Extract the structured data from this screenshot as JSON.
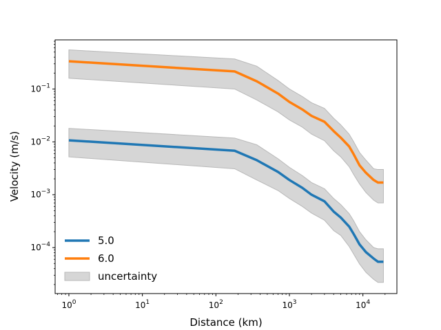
{
  "chart_data": {
    "type": "line",
    "title": "",
    "xlabel": "Distance (km)",
    "ylabel": "Velocity (m/s)",
    "xscale": "log",
    "yscale": "log",
    "xlim": [
      0.65,
      29000
    ],
    "ylim": [
      1.35e-05,
      0.85
    ],
    "grid": false,
    "legend_position": "lower-left",
    "x_ticks": [
      {
        "value": 1,
        "base": "10",
        "exp": "0"
      },
      {
        "value": 10,
        "base": "10",
        "exp": "1"
      },
      {
        "value": 100,
        "base": "10",
        "exp": "2"
      },
      {
        "value": 1000,
        "base": "10",
        "exp": "3"
      },
      {
        "value": 10000,
        "base": "10",
        "exp": "4"
      }
    ],
    "y_ticks": [
      {
        "value": 0.0001,
        "base": "10",
        "exp": "−4"
      },
      {
        "value": 0.001,
        "base": "10",
        "exp": "−3"
      },
      {
        "value": 0.01,
        "base": "10",
        "exp": "−2"
      },
      {
        "value": 0.1,
        "base": "10",
        "exp": "−1"
      }
    ],
    "series": [
      {
        "name": "5.0",
        "color": "#1f77b4",
        "points": [
          [
            1,
            0.0107
          ],
          [
            180,
            0.0068
          ],
          [
            360,
            0.0045
          ],
          [
            700,
            0.0027
          ],
          [
            1000,
            0.0019
          ],
          [
            1500,
            0.00135
          ],
          [
            2000,
            0.001
          ],
          [
            3000,
            0.00075
          ],
          [
            4000,
            0.00048
          ],
          [
            5000,
            0.00037
          ],
          [
            6500,
            0.00025
          ],
          [
            7500,
            0.00018
          ],
          [
            9000,
            0.000115
          ],
          [
            11000,
            8.2e-05
          ],
          [
            14000,
            6.2e-05
          ],
          [
            16000,
            5.4e-05
          ],
          [
            19000,
            5.4e-05
          ]
        ],
        "band_upper": [
          [
            1,
            0.018
          ],
          [
            180,
            0.0118
          ],
          [
            360,
            0.0088
          ],
          [
            700,
            0.0048
          ],
          [
            1000,
            0.0033
          ],
          [
            1500,
            0.0023
          ],
          [
            2000,
            0.0017
          ],
          [
            3000,
            0.0013
          ],
          [
            4000,
            0.00085
          ],
          [
            5000,
            0.00065
          ],
          [
            6500,
            0.00044
          ],
          [
            7500,
            0.00032
          ],
          [
            9000,
            0.0002
          ],
          [
            11000,
            0.00014
          ],
          [
            14000,
            0.0001
          ],
          [
            16000,
            9.5e-05
          ],
          [
            19000,
            9.5e-05
          ]
        ],
        "band_lower": [
          [
            1,
            0.0052
          ],
          [
            180,
            0.0031
          ],
          [
            360,
            0.0019
          ],
          [
            700,
            0.0012
          ],
          [
            1000,
            0.00085
          ],
          [
            1500,
            0.0006
          ],
          [
            2000,
            0.00045
          ],
          [
            3000,
            0.00033
          ],
          [
            4000,
            0.00021
          ],
          [
            5000,
            0.00017
          ],
          [
            6500,
            0.000105
          ],
          [
            7500,
            7.5e-05
          ],
          [
            9000,
            4.9e-05
          ],
          [
            11000,
            3.4e-05
          ],
          [
            14000,
            2.5e-05
          ],
          [
            16000,
            2.2e-05
          ],
          [
            19000,
            2.2e-05
          ]
        ]
      },
      {
        "name": "6.0",
        "color": "#ff7f0e",
        "points": [
          [
            1,
            0.335
          ],
          [
            180,
            0.215
          ],
          [
            360,
            0.14
          ],
          [
            700,
            0.082
          ],
          [
            1000,
            0.057
          ],
          [
            1500,
            0.041
          ],
          [
            2000,
            0.031
          ],
          [
            3000,
            0.024
          ],
          [
            4000,
            0.016
          ],
          [
            5000,
            0.012
          ],
          [
            6500,
            0.0082
          ],
          [
            7500,
            0.0058
          ],
          [
            9000,
            0.0036
          ],
          [
            11000,
            0.0026
          ],
          [
            14000,
            0.0019
          ],
          [
            16000,
            0.0017
          ],
          [
            19000,
            0.0017
          ]
        ],
        "band_upper": [
          [
            1,
            0.55
          ],
          [
            180,
            0.37
          ],
          [
            360,
            0.27
          ],
          [
            700,
            0.145
          ],
          [
            1000,
            0.1
          ],
          [
            1500,
            0.072
          ],
          [
            2000,
            0.055
          ],
          [
            3000,
            0.043
          ],
          [
            4000,
            0.028
          ],
          [
            5000,
            0.021
          ],
          [
            6500,
            0.014
          ],
          [
            7500,
            0.01
          ],
          [
            9000,
            0.0063
          ],
          [
            11000,
            0.0045
          ],
          [
            14000,
            0.0031
          ],
          [
            16000,
            0.003
          ],
          [
            19000,
            0.003
          ]
        ],
        "band_lower": [
          [
            1,
            0.16
          ],
          [
            180,
            0.1
          ],
          [
            360,
            0.062
          ],
          [
            700,
            0.037
          ],
          [
            1000,
            0.026
          ],
          [
            1500,
            0.019
          ],
          [
            2000,
            0.014
          ],
          [
            3000,
            0.0105
          ],
          [
            4000,
            0.0068
          ],
          [
            5000,
            0.0052
          ],
          [
            6500,
            0.0034
          ],
          [
            7500,
            0.0024
          ],
          [
            9000,
            0.0016
          ],
          [
            11000,
            0.0011
          ],
          [
            14000,
            0.00079
          ],
          [
            16000,
            0.0007
          ],
          [
            19000,
            0.0007
          ]
        ]
      }
    ],
    "band": {
      "name": "uncertainty",
      "color": "#d6d6d6",
      "edge_color": "#b8b8b8"
    }
  }
}
